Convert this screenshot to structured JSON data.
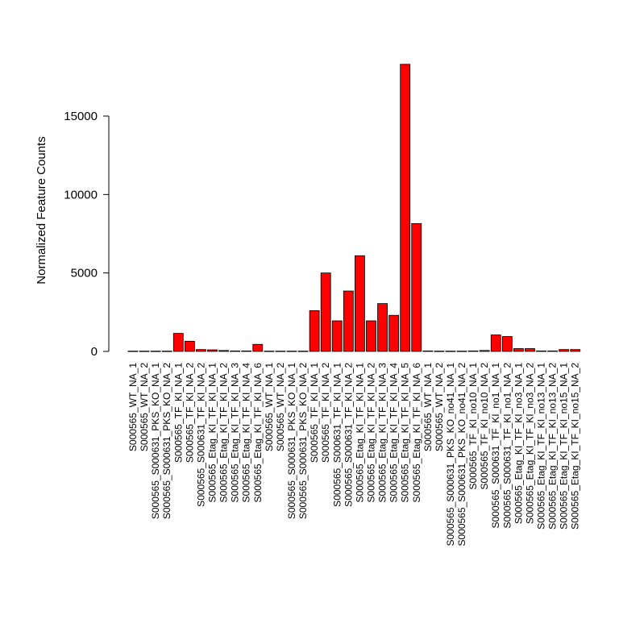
{
  "chart_data": {
    "type": "bar",
    "title": "",
    "xlabel": "",
    "ylabel": "Normalized Feature Counts",
    "ylim": [
      0,
      18300
    ],
    "yticks": [
      0,
      5000,
      10000,
      15000
    ],
    "grid": false,
    "legend": "none",
    "bar_color": "#ff0000",
    "bar_border_color": "#000000",
    "categories": [
      "S000565_WT_NA_1",
      "S000565_WT_NA_2",
      "S000565_S000631_PKS_KO_NA_1",
      "S000565_S000631_PKS_KO_NA_2",
      "S000565_TF_KI_NA_1",
      "S000565_TF_KI_NA_2",
      "S000565_S000631_TF_KI_NA_2",
      "S000565_Etag_KI_TF_KI_NA_1",
      "S000565_Etag_KI_TF_KI_NA_2",
      "S000565_Etag_KI_TF_KI_NA_3",
      "S000565_Etag_KI_TF_KI_NA_4",
      "S000565_Etag_KI_TF_KI_NA_6",
      "S000565_WT_NA_1",
      "S000565_WT_NA_2",
      "S000565_S000631_PKS_KO_NA_1",
      "S000565_S000631_PKS_KO_NA_2",
      "S000565_TF_KI_NA_1",
      "S000565_TF_KI_NA_2",
      "S000565_S000631_TF_KI_NA_1",
      "S000565_S000631_TF_KI_NA_2",
      "S000565_Etag_KI_TF_KI_NA_1",
      "S000565_Etag_KI_TF_KI_NA_2",
      "S000565_Etag_KI_TF_KI_NA_3",
      "S000565_Etag_KI_TF_KI_NA_4",
      "S000565_Etag_KI_TF_KI_NA_5",
      "S000565_Etag_KI_TF_KI_NA_6",
      "S000565_WT_NA_1",
      "S000565_WT_NA_2",
      "S000565_S000631_PKS_KO_no41_NA_1",
      "S000565_S000631_PKS_KO_no41_NA_2",
      "S000565_TF_KI_no10_NA_1",
      "S000565_TF_KI_no10_NA_2",
      "S000565_S000631_TF_KI_no1_NA_1",
      "S000565_S000631_TF_KI_no1_NA_2",
      "S000565_Etag_KI_TF_KI_no3_NA_1",
      "S000565_Etag_KI_TF_KI_no3_NA_2",
      "S000565_Etag_KI_TF_KI_no13_NA_1",
      "S000565_Etag_KI_TF_KI_no13_NA_2",
      "S000565_Etag_KI_TF_KI_no15_NA_1",
      "S000565_Etag_KI_TF_KI_no15_NA_2"
    ],
    "values": [
      20,
      20,
      20,
      20,
      1150,
      650,
      120,
      100,
      60,
      30,
      30,
      450,
      20,
      20,
      20,
      20,
      2600,
      5000,
      1950,
      3850,
      6100,
      1950,
      3050,
      2300,
      18300,
      8150,
      30,
      20,
      20,
      20,
      30,
      60,
      1050,
      950,
      180,
      180,
      30,
      30,
      120,
      120
    ]
  }
}
